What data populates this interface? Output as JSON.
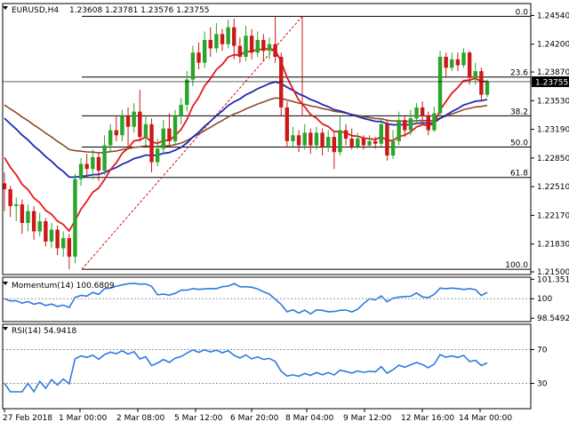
{
  "header": {
    "symbol": "EURUSD,H4",
    "ohlc": "1.23608 1.23781 1.23576 1.23755"
  },
  "chart_data": {
    "type": "candlestick",
    "symbol": "EURUSD",
    "timeframe": "H4",
    "price_range": [
      1.215,
      1.2465
    ],
    "price_ticks": [
      "1.24540",
      "1.24200",
      "1.23870",
      "1.23530",
      "1.23190",
      "1.22850",
      "1.22510",
      "1.22170",
      "1.21830",
      "1.21500"
    ],
    "current_price": "1.23755",
    "time_labels": [
      "27 Feb 2018",
      "1 Mar 00:00",
      "2 Mar 08:00",
      "5 Mar 12:00",
      "6 Mar 20:00",
      "8 Mar 04:00",
      "9 Mar 12:00",
      "12 Mar 16:00",
      "14 Mar 00:00"
    ],
    "fib_levels": [
      {
        "label": "0.0",
        "price": 1.2453
      },
      {
        "label": "23.6",
        "price": 1.2381
      },
      {
        "label": "38.2",
        "price": 1.2335
      },
      {
        "label": "50.0",
        "price": 1.2298
      },
      {
        "label": "61.8",
        "price": 1.2262
      },
      {
        "label": "100.0",
        "price": 1.2153
      }
    ],
    "fib_trend": {
      "start": [
        1.2153,
        1.2453
      ]
    },
    "candles": [
      [
        1.2255,
        1.2248,
        1.2268,
        1.2222
      ],
      [
        1.2248,
        1.2228,
        1.2252,
        1.2215
      ],
      [
        1.2228,
        1.223,
        1.2238,
        1.221
      ],
      [
        1.223,
        1.2208,
        1.2236,
        1.2195
      ],
      [
        1.2208,
        1.2222,
        1.223,
        1.2198
      ],
      [
        1.2222,
        1.2198,
        1.2228,
        1.2188
      ],
      [
        1.2198,
        1.221,
        1.222,
        1.2192
      ],
      [
        1.221,
        1.2186,
        1.2214,
        1.218
      ],
      [
        1.2186,
        1.22,
        1.2208,
        1.2178
      ],
      [
        1.22,
        1.2178,
        1.2205,
        1.217
      ],
      [
        1.2178,
        1.219,
        1.2198,
        1.2168
      ],
      [
        1.219,
        1.2168,
        1.2195,
        1.2153
      ],
      [
        1.2168,
        1.226,
        1.2266,
        1.216
      ],
      [
        1.226,
        1.2278,
        1.2285,
        1.2252
      ],
      [
        1.2278,
        1.2272,
        1.229,
        1.2262
      ],
      [
        1.2272,
        1.2286,
        1.2295,
        1.226
      ],
      [
        1.2286,
        1.227,
        1.2292,
        1.2258
      ],
      [
        1.227,
        1.23,
        1.2312,
        1.2265
      ],
      [
        1.23,
        1.2318,
        1.2325,
        1.2292
      ],
      [
        1.2318,
        1.2312,
        1.2335,
        1.2305
      ],
      [
        1.2312,
        1.2335,
        1.2342,
        1.2305
      ],
      [
        1.2335,
        1.2322,
        1.2345,
        1.2298
      ],
      [
        1.2322,
        1.234,
        1.235,
        1.2315
      ],
      [
        1.234,
        1.231,
        1.2366,
        1.2305
      ],
      [
        1.231,
        1.2325,
        1.2335,
        1.23
      ],
      [
        1.2325,
        1.228,
        1.2332,
        1.2268
      ],
      [
        1.228,
        1.2296,
        1.2308,
        1.2275
      ],
      [
        1.2296,
        1.232,
        1.233,
        1.229
      ],
      [
        1.232,
        1.2305,
        1.2338,
        1.2298
      ],
      [
        1.2305,
        1.2335,
        1.2342,
        1.2302
      ],
      [
        1.2335,
        1.2348,
        1.2356,
        1.2325
      ],
      [
        1.2348,
        1.2378,
        1.2388,
        1.234
      ],
      [
        1.2378,
        1.241,
        1.2418,
        1.237
      ],
      [
        1.241,
        1.2398,
        1.2422,
        1.239
      ],
      [
        1.2398,
        1.2425,
        1.2435,
        1.2392
      ],
      [
        1.2425,
        1.2415,
        1.244,
        1.2405
      ],
      [
        1.2415,
        1.2432,
        1.2445,
        1.241
      ],
      [
        1.2432,
        1.242,
        1.2438,
        1.2412
      ],
      [
        1.242,
        1.244,
        1.2449,
        1.2415
      ],
      [
        1.244,
        1.2418,
        1.245,
        1.2402
      ],
      [
        1.2418,
        1.2405,
        1.2428,
        1.2398
      ],
      [
        1.2405,
        1.243,
        1.2442,
        1.24
      ],
      [
        1.243,
        1.241,
        1.2438,
        1.2402
      ],
      [
        1.241,
        1.2425,
        1.2435,
        1.2405
      ],
      [
        1.2425,
        1.2412,
        1.2432,
        1.24
      ],
      [
        1.2412,
        1.242,
        1.2428,
        1.2402
      ],
      [
        1.242,
        1.2405,
        1.2453,
        1.2398
      ],
      [
        1.2405,
        1.2345,
        1.241,
        1.2335
      ],
      [
        1.2345,
        1.2305,
        1.2352,
        1.2298
      ],
      [
        1.2305,
        1.2312,
        1.2322,
        1.2298
      ],
      [
        1.2312,
        1.23,
        1.2318,
        1.2292
      ],
      [
        1.23,
        1.2315,
        1.2325,
        1.2295
      ],
      [
        1.2315,
        1.23,
        1.232,
        1.229
      ],
      [
        1.23,
        1.2315,
        1.2322,
        1.2295
      ],
      [
        1.2315,
        1.2298,
        1.232,
        1.2288
      ],
      [
        1.2298,
        1.231,
        1.2318,
        1.2292
      ],
      [
        1.231,
        1.2292,
        1.2315,
        1.2272
      ],
      [
        1.2292,
        1.2318,
        1.2335,
        1.2288
      ],
      [
        1.2318,
        1.2308,
        1.2325,
        1.23
      ],
      [
        1.2308,
        1.2298,
        1.232,
        1.2295
      ],
      [
        1.2298,
        1.2308,
        1.2315,
        1.2296
      ],
      [
        1.2308,
        1.23,
        1.2312,
        1.2295
      ],
      [
        1.23,
        1.2305,
        1.2312,
        1.2297
      ],
      [
        1.2305,
        1.2302,
        1.231,
        1.2296
      ],
      [
        1.2302,
        1.2325,
        1.2332,
        1.2298
      ],
      [
        1.2325,
        1.2288,
        1.233,
        1.2282
      ],
      [
        1.2288,
        1.2305,
        1.2318,
        1.2284
      ],
      [
        1.2305,
        1.233,
        1.234,
        1.23
      ],
      [
        1.233,
        1.2318,
        1.2336,
        1.231
      ],
      [
        1.2318,
        1.2332,
        1.2342,
        1.2312
      ],
      [
        1.2332,
        1.2345,
        1.235,
        1.2325
      ],
      [
        1.2345,
        1.2335,
        1.2352,
        1.2326
      ],
      [
        1.2335,
        1.2318,
        1.234,
        1.2312
      ],
      [
        1.2318,
        1.2338,
        1.2346,
        1.2316
      ],
      [
        1.2338,
        1.2405,
        1.2412,
        1.2335
      ],
      [
        1.2405,
        1.2392,
        1.241,
        1.238
      ],
      [
        1.2392,
        1.2402,
        1.241,
        1.2388
      ],
      [
        1.2402,
        1.2395,
        1.241,
        1.2388
      ],
      [
        1.2395,
        1.241,
        1.2415,
        1.2392
      ],
      [
        1.241,
        1.238,
        1.2412,
        1.2372
      ],
      [
        1.238,
        1.2388,
        1.2398,
        1.2372
      ],
      [
        1.2388,
        1.236,
        1.2392,
        1.2352
      ],
      [
        1.236,
        1.2376,
        1.2378,
        1.2357
      ]
    ],
    "indicators": {
      "momentum": {
        "label": "Momentum(14) 100.6809",
        "scale": [
          "101.3511",
          "100",
          "98.5492"
        ],
        "range": [
          98.3,
          101.6
        ]
      },
      "rsi": {
        "label": "RSI(14) 54.9418",
        "scale": [
          "70",
          "30"
        ],
        "range": [
          0,
          100
        ]
      }
    },
    "colors": {
      "bull": "#2aa52a",
      "bear": "#cc1818",
      "ma_fast": "#e61a1a",
      "ma_mid": "#1e2bb4",
      "ma_slow": "#8c4c2a",
      "indicator": "#2d7be0",
      "fib": "#000000"
    }
  }
}
